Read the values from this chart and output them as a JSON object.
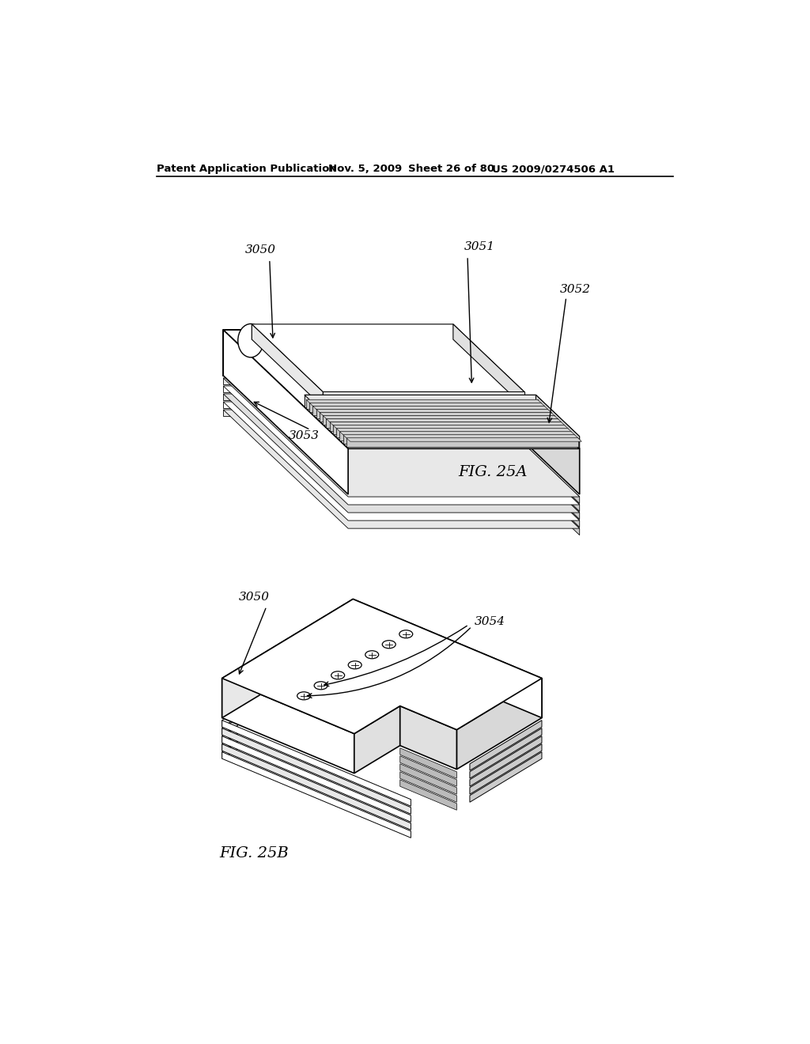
{
  "background_color": "#ffffff",
  "header_text": "Patent Application Publication",
  "header_date": "Nov. 5, 2009",
  "header_sheet": "Sheet 26 of 80",
  "header_patent": "US 2009/0274506 A1",
  "fig25a_label": "FIG. 25A",
  "fig25b_label": "FIG. 25B",
  "label_3050_top": "3050",
  "label_3051": "3051",
  "label_3052": "3052",
  "label_3053": "3053",
  "label_3050_bot": "3050",
  "label_3054": "3054"
}
